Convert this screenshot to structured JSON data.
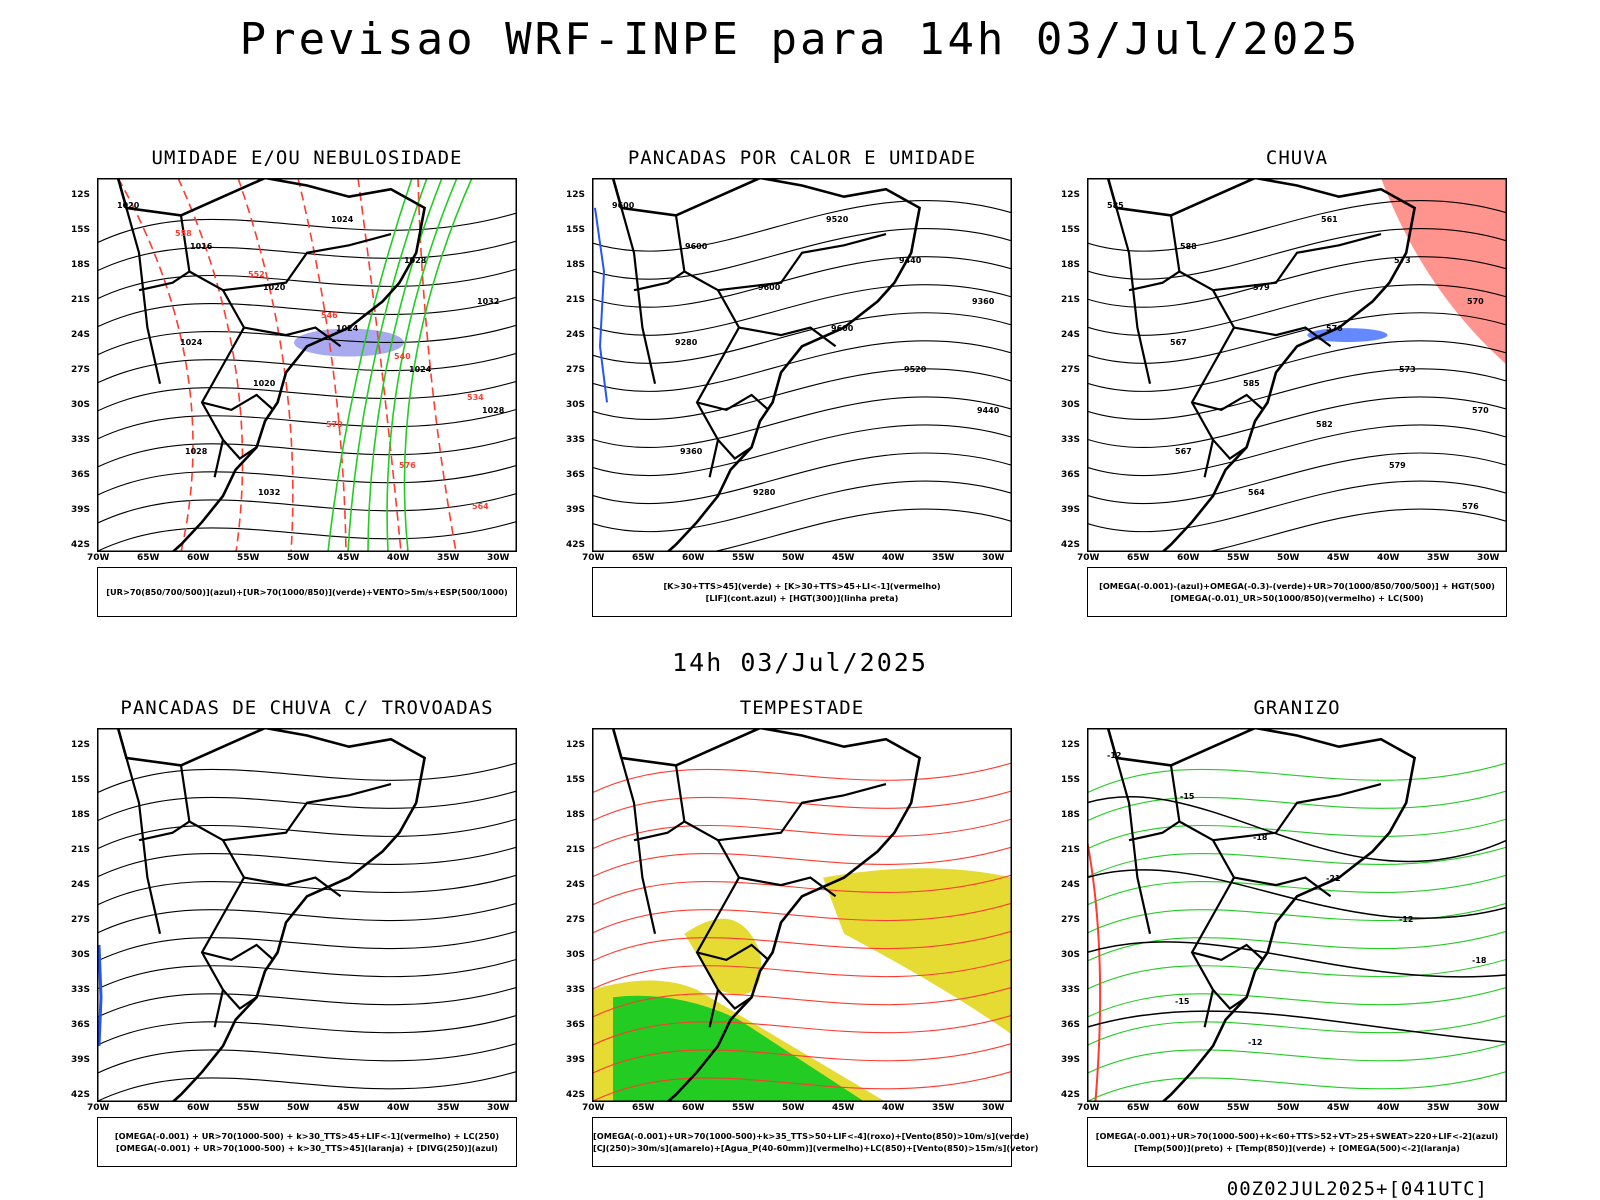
{
  "header": {
    "title": "Previsao WRF-INPE  para 14h 03/Jul/2025"
  },
  "mid_title": "14h 03/Jul/2025",
  "footer": "00Z02JUL2025+[041UTC]",
  "lat_labels": [
    "12S",
    "15S",
    "18S",
    "21S",
    "24S",
    "27S",
    "30S",
    "33S",
    "36S",
    "39S",
    "42S"
  ],
  "lon_labels": [
    "70W",
    "65W",
    "60W",
    "55W",
    "50W",
    "45W",
    "40W",
    "35W",
    "30W"
  ],
  "panels": [
    {
      "title": "UMIDADE E/OU NEBULOSIDADE",
      "legend": [
        "[UR>70(850/700/500)](azul)+[UR>70(1000/850)](verde)+VENTO>5m/s+ESP(500/1000)"
      ],
      "labels": [
        "1020",
        "1016",
        "1020",
        "1024",
        "1024",
        "1028",
        "1028",
        "1032",
        "1024",
        "1028",
        "1032",
        "1024",
        "1020",
        "570",
        "576",
        "564",
        "558",
        "552",
        "546",
        "540",
        "534"
      ]
    },
    {
      "title": "PANCADAS POR CALOR E UMIDADE",
      "legend": [
        "[K>30+TTS>45](verde) + [K>30+TTS>45+LI<-1](vermelho)",
        "[LIF](cont.azul) + [HGT(300)](linha preta)"
      ],
      "labels": [
        "9600",
        "9600",
        "9600",
        "9600",
        "9520",
        "9440",
        "9360",
        "9280",
        "9520",
        "9440",
        "9360",
        "9280"
      ]
    },
    {
      "title": "CHUVA",
      "legend": [
        "[OMEGA(-0.001)-(azul)+OMEGA(-0.3)-(verde)+UR>70(1000/850/700/500)] + HGT(500)",
        "[OMEGA(-0.01)_UR>50(1000/850)(vermelho) + LC(500)"
      ],
      "labels": [
        "585",
        "588",
        "579",
        "576",
        "573",
        "570",
        "567",
        "564",
        "561",
        "573",
        "570",
        "567",
        "585",
        "582",
        "579",
        "576"
      ]
    },
    {
      "title": "PANCADAS DE CHUVA C/ TROVOADAS",
      "legend": [
        "[OMEGA(-0.001) + UR>70(1000-500) + k>30_TTS>45+LIF<-1](vermelho) + LC(250)",
        "[OMEGA(-0.001) + UR>70(1000-500) + k>30_TTS>45](laranja) + [DIVG(250)](azul)"
      ],
      "labels": []
    },
    {
      "title": "TEMPESTADE",
      "legend": [
        "[OMEGA(-0.001)+UR>70(1000-500)+k>35_TTS>50+LIF<-4](roxo)+[Vento(850)>10m/s](verde)",
        "[CJ(250)>30m/s](amarelo)+[Agua_P(40-60mm)](vermelho)+LC(850)+[Vento(850)>15m/s](vetor)"
      ],
      "labels": []
    },
    {
      "title": "GRANIZO",
      "legend": [
        "[OMEGA(-0.001)+UR>70(1000-500)+k<60+TTS>52+VT>25+SWEAT>220+LIF<-2](azul)",
        "[Temp(500)](preto) + [Temp(850)](verde) + [OMEGA(500)<-2](laranja)"
      ],
      "labels": [
        "-12",
        "-15",
        "-18",
        "-21",
        "-12",
        "-18",
        "-15",
        "-12"
      ]
    }
  ],
  "colors": {
    "red": "#ff3b30",
    "green": "#22cc22",
    "blue": "#2255ff",
    "yellow": "#e6db33",
    "lavender": "#a9a9f0",
    "teal": "#335555"
  }
}
